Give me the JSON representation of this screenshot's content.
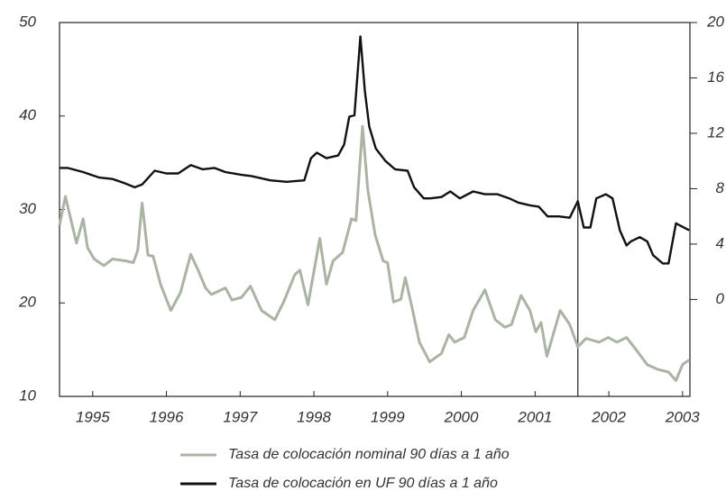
{
  "chart_data": {
    "type": "line",
    "xlim": [
      1994.55,
      2003.1
    ],
    "xticks": [
      1995,
      1996,
      1997,
      1998,
      1999,
      2000,
      2001,
      2002,
      2003
    ],
    "ylim": [
      10,
      50
    ],
    "yticks": [
      10,
      20,
      30,
      40,
      50
    ],
    "y2lim": [
      -7,
      20
    ],
    "y2ticks": [
      0,
      4,
      8,
      12,
      16,
      20
    ],
    "vlines": [
      2001.58
    ],
    "legend": "bottom",
    "series": [
      {
        "name": "Tasa de colocación nominal 90 días a 1 año",
        "color": "#a9b4a3",
        "axis": "y",
        "x": [
          1994.55,
          1994.63,
          1994.78,
          1994.87,
          1994.93,
          1995.02,
          1995.15,
          1995.27,
          1995.45,
          1995.55,
          1995.61,
          1995.67,
          1995.75,
          1995.82,
          1995.92,
          1996.06,
          1996.19,
          1996.33,
          1996.43,
          1996.53,
          1996.61,
          1996.8,
          1996.89,
          1997.02,
          1997.14,
          1997.29,
          1997.47,
          1997.59,
          1997.74,
          1997.81,
          1997.92,
          1998.08,
          1998.17,
          1998.26,
          1998.39,
          1998.51,
          1998.57,
          1998.66,
          1998.73,
          1998.83,
          1998.94,
          1999.0,
          1999.08,
          1999.18,
          1999.24,
          1999.34,
          1999.43,
          1999.57,
          1999.73,
          1999.83,
          1999.91,
          2000.04,
          2000.16,
          2000.32,
          2000.46,
          2000.59,
          2000.68,
          2000.81,
          2000.93,
          2001.01,
          2001.08,
          2001.16,
          2001.34,
          2001.47,
          2001.58,
          2001.69,
          2001.87,
          2001.99,
          2002.11,
          2002.24,
          2002.36,
          2002.52,
          2002.66,
          2002.81,
          2002.91,
          2003.0,
          2003.09
        ],
        "values": [
          28.3,
          31.4,
          26.4,
          29.0,
          25.9,
          24.7,
          24.0,
          24.7,
          24.5,
          24.3,
          25.6,
          30.7,
          25.1,
          25.0,
          22.0,
          19.2,
          21.1,
          25.2,
          23.5,
          21.6,
          20.9,
          21.6,
          20.3,
          20.6,
          21.8,
          19.2,
          18.2,
          20.1,
          23.0,
          23.5,
          19.8,
          26.9,
          22.0,
          24.5,
          25.4,
          29.0,
          28.8,
          38.9,
          32.2,
          27.3,
          24.5,
          24.3,
          20.1,
          20.4,
          22.7,
          19.2,
          15.8,
          13.7,
          14.6,
          16.6,
          15.8,
          16.3,
          19.2,
          21.4,
          18.2,
          17.4,
          17.7,
          20.8,
          19.2,
          16.9,
          17.9,
          14.3,
          19.2,
          17.7,
          15.3,
          16.2,
          15.8,
          16.3,
          15.8,
          16.3,
          15.1,
          13.4,
          12.9,
          12.6,
          11.7,
          13.4,
          13.9
        ]
      },
      {
        "name": "Tasa de colocación en UF 90 días a 1 año",
        "color": "#111111",
        "axis": "y2",
        "x": [
          1994.55,
          1994.66,
          1994.87,
          1995.09,
          1995.27,
          1995.43,
          1995.57,
          1995.67,
          1995.84,
          1996.0,
          1996.16,
          1996.33,
          1996.49,
          1996.65,
          1996.8,
          1997.02,
          1997.16,
          1997.41,
          1997.63,
          1997.87,
          1997.96,
          1998.04,
          1998.17,
          1998.33,
          1998.41,
          1998.48,
          1998.55,
          1998.63,
          1998.69,
          1998.75,
          1998.84,
          1998.97,
          1999.1,
          1999.27,
          1999.36,
          1999.49,
          1999.58,
          1999.73,
          1999.85,
          1999.98,
          2000.16,
          2000.32,
          2000.49,
          2000.65,
          2000.77,
          2000.93,
          2001.05,
          2001.17,
          2001.32,
          2001.47,
          2001.58,
          2001.66,
          2001.75,
          2001.83,
          2001.96,
          2002.05,
          2002.15,
          2002.24,
          2002.3,
          2002.42,
          2002.52,
          2002.6,
          2002.73,
          2002.81,
          2002.91,
          2003.09
        ],
        "values": [
          9.5,
          9.5,
          9.2,
          8.8,
          8.7,
          8.4,
          8.1,
          8.3,
          9.3,
          9.1,
          9.1,
          9.7,
          9.4,
          9.5,
          9.2,
          9.0,
          8.9,
          8.6,
          8.5,
          8.6,
          10.2,
          10.6,
          10.2,
          10.4,
          11.2,
          13.2,
          13.3,
          19.0,
          15.1,
          12.5,
          10.9,
          10.0,
          9.4,
          9.3,
          8.1,
          7.3,
          7.3,
          7.4,
          7.8,
          7.3,
          7.8,
          7.6,
          7.6,
          7.3,
          7.0,
          6.8,
          6.7,
          6.0,
          6.0,
          5.9,
          7.1,
          5.2,
          5.2,
          7.3,
          7.6,
          7.3,
          5.0,
          3.9,
          4.2,
          4.5,
          4.2,
          3.2,
          2.6,
          2.6,
          5.5,
          5.0
        ]
      }
    ]
  }
}
